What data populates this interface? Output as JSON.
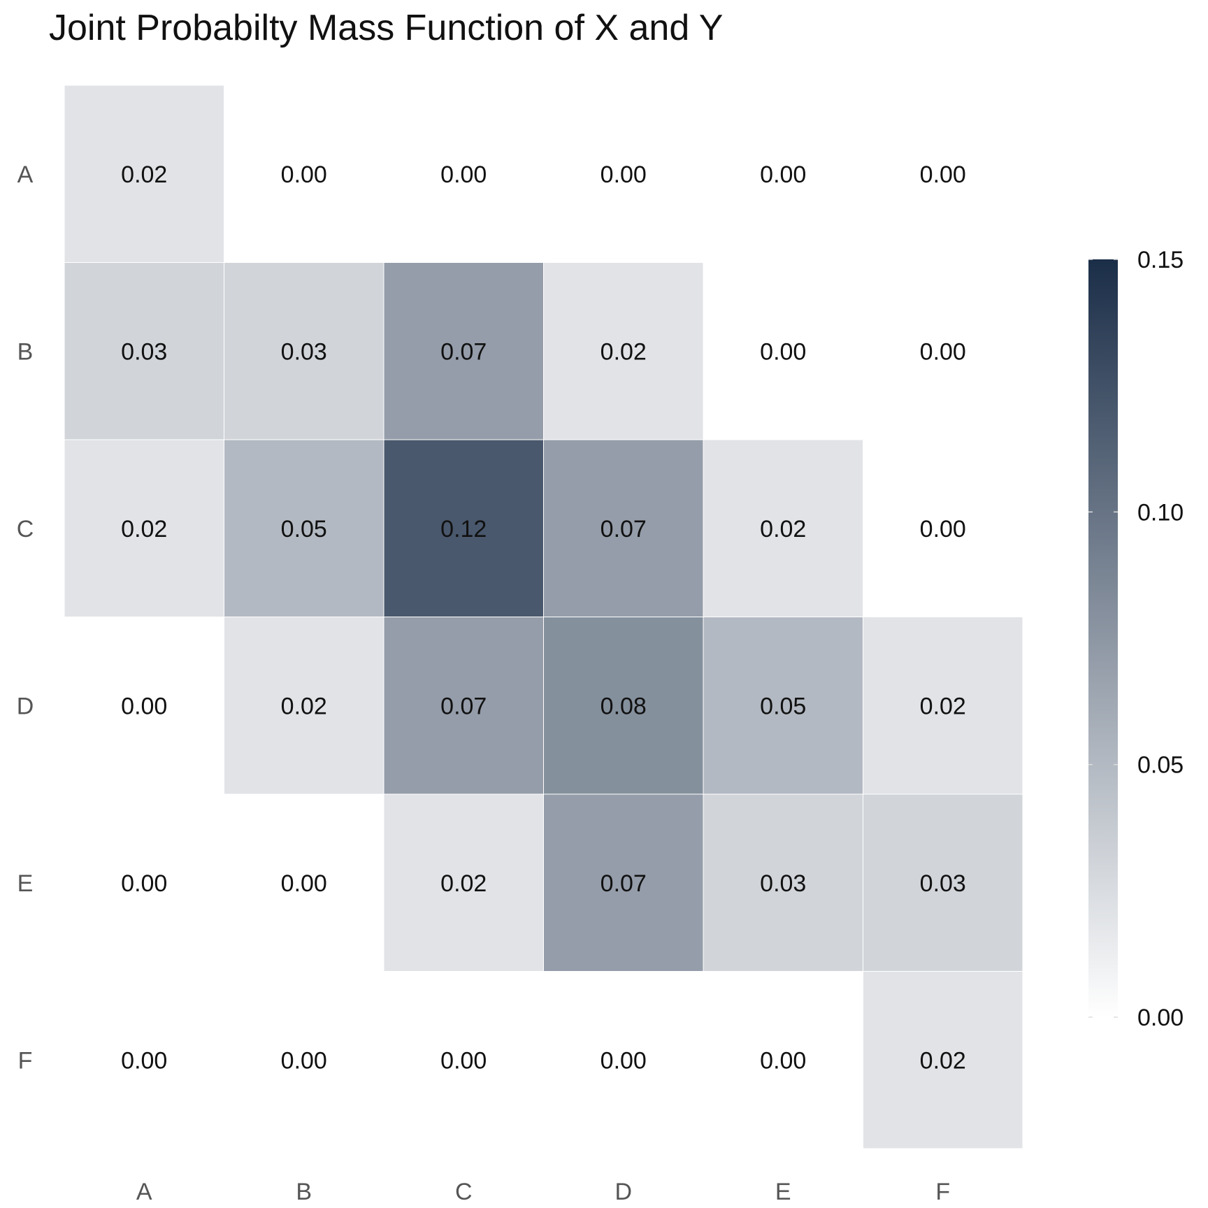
{
  "chart_data": {
    "type": "heatmap",
    "title": "Joint Probabilty Mass Function of X and Y",
    "xlabel": "",
    "ylabel": "",
    "x_categories": [
      "A",
      "B",
      "C",
      "D",
      "E",
      "F"
    ],
    "y_categories": [
      "A",
      "B",
      "C",
      "D",
      "E",
      "F"
    ],
    "values": [
      [
        0.02,
        0.0,
        0.0,
        0.0,
        0.0,
        0.0
      ],
      [
        0.03,
        0.03,
        0.07,
        0.02,
        0.0,
        0.0
      ],
      [
        0.02,
        0.05,
        0.12,
        0.07,
        0.02,
        0.0
      ],
      [
        0.0,
        0.02,
        0.07,
        0.08,
        0.05,
        0.02
      ],
      [
        0.0,
        0.0,
        0.02,
        0.07,
        0.03,
        0.03
      ],
      [
        0.0,
        0.0,
        0.0,
        0.0,
        0.0,
        0.02
      ]
    ],
    "colorbar": {
      "range": [
        0,
        0.15
      ],
      "ticks": [
        0.0,
        0.05,
        0.1,
        0.15
      ],
      "tick_labels": [
        "0.00",
        "0.05",
        "0.10",
        "0.15"
      ],
      "color_low": "#ffffff",
      "color_high": "#1b2e48"
    },
    "grid": false,
    "legend": "colorbar-right"
  }
}
